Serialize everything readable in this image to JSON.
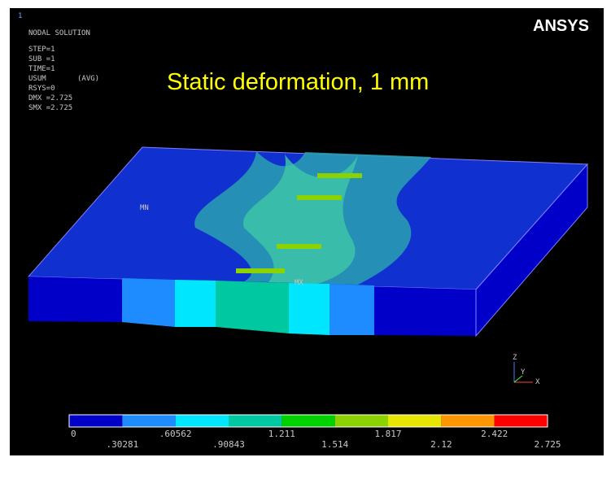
{
  "window_number": "1",
  "brand": "ANSYS",
  "info_lines": [
    "NODAL SOLUTION",
    "STEP=1",
    "SUB =1",
    "TIME=1",
    "USUM",
    "(AVG)",
    "RSYS=0",
    "DMX =2.725",
    "SMX =2.725"
  ],
  "title": "Static deformation, 1 mm",
  "model_labels": {
    "min": "MN",
    "max": "MX"
  },
  "axes": {
    "z": "Z",
    "y": "Y",
    "x": "X"
  },
  "legend": {
    "colors": [
      "#0000c8",
      "#1e8cff",
      "#00e6ff",
      "#00c8a0",
      "#00d200",
      "#8cd200",
      "#e6e600",
      "#ff9600",
      "#ff0000"
    ],
    "labels": [
      "0",
      ".30281",
      ".60562",
      ".90843",
      "1.211",
      "1.514",
      "1.817",
      "2.12",
      "2.422",
      "2.725"
    ]
  }
}
